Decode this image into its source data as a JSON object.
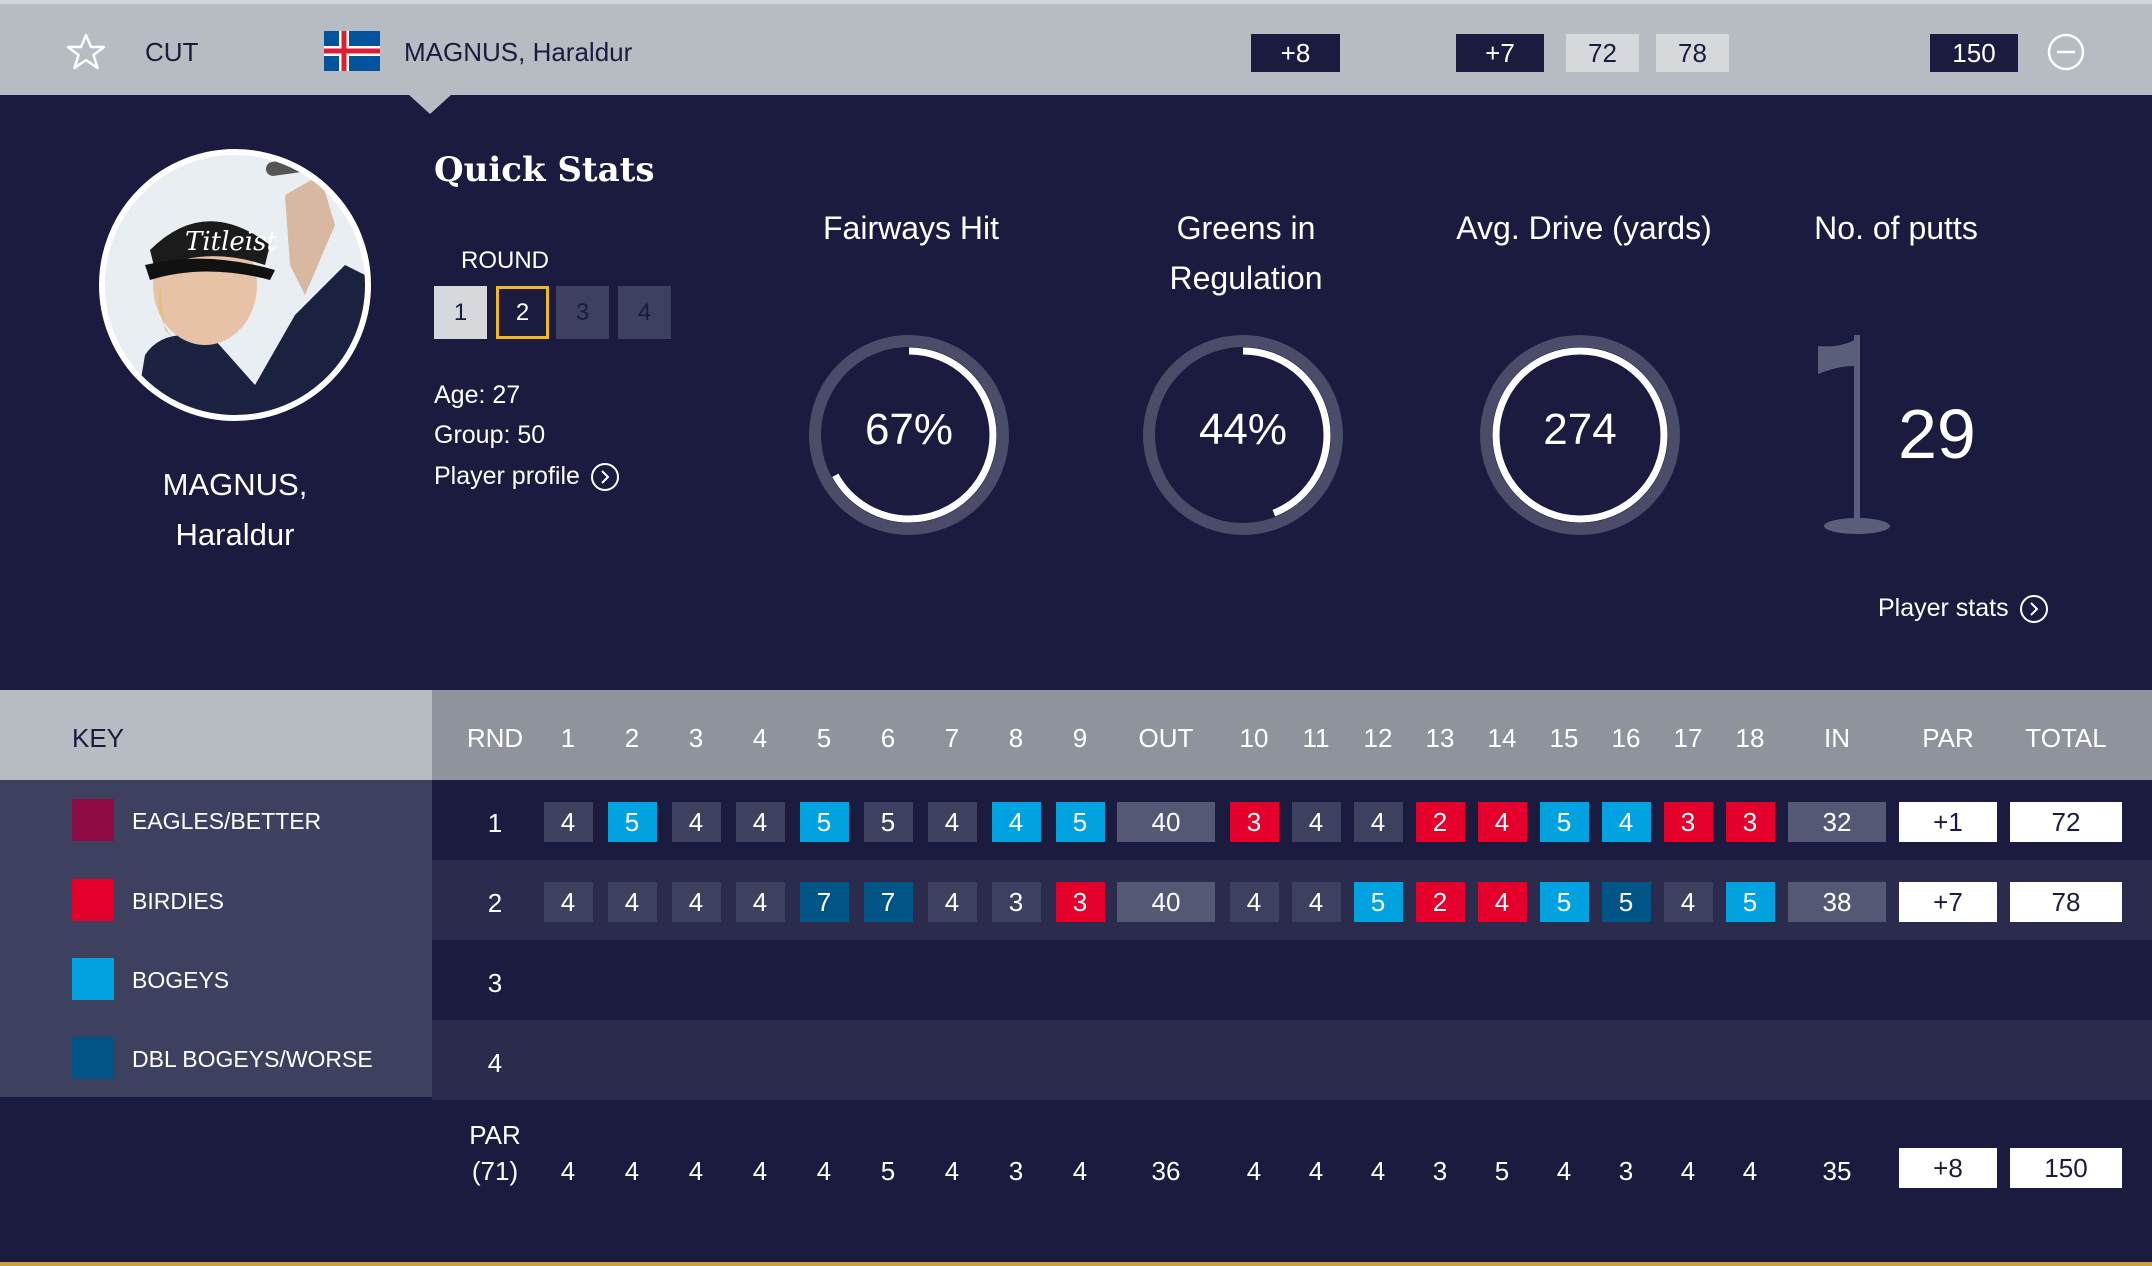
{
  "header": {
    "position": "CUT",
    "player_name": "MAGNUS, Haraldur",
    "to_par": "+8",
    "today": "+7",
    "r1": "72",
    "r2": "78",
    "total": "150"
  },
  "player": {
    "name_line1": "MAGNUS,",
    "name_line2": "Haraldur",
    "age": "Age: 27",
    "group": "Group: 50",
    "profile_link": "Player profile"
  },
  "quick_stats": {
    "title": "Quick Stats",
    "round_label": "ROUND",
    "rounds": [
      "1",
      "2",
      "3",
      "4"
    ],
    "selected_round": "2",
    "fairways_title": "Fairways Hit",
    "fairways_value": "67%",
    "fairways_fraction": 0.67,
    "gir_title_line1": "Greens in",
    "gir_title_line2": "Regulation",
    "gir_value": "44%",
    "gir_fraction": 0.44,
    "drive_title": "Avg. Drive (yards)",
    "drive_value": "274",
    "drive_fraction": 1.0,
    "putts_title": "No. of putts",
    "putts_value": "29",
    "stats_link": "Player stats"
  },
  "key": {
    "title": "KEY",
    "items": [
      {
        "label": "EAGLES/BETTER",
        "color": "#8e0a43"
      },
      {
        "label": "BIRDIES",
        "color": "#e4002b"
      },
      {
        "label": "BOGEYS",
        "color": "#00a3e0"
      },
      {
        "label": "DBL BOGEYS/WORSE",
        "color": "#005587"
      }
    ]
  },
  "colors": {
    "par": "#3e4060",
    "birdie": "#e4002b",
    "bogey": "#00a3e0",
    "dbl": "#005587",
    "subtotal": "#555874",
    "navy": "#1a1b3f",
    "row_alt": "#2a2b4d"
  },
  "scorecard": {
    "headers": [
      "RND",
      "1",
      "2",
      "3",
      "4",
      "5",
      "6",
      "7",
      "8",
      "9",
      "OUT",
      "10",
      "11",
      "12",
      "13",
      "14",
      "15",
      "16",
      "17",
      "18",
      "IN",
      "PAR",
      "TOTAL"
    ],
    "rounds": [
      {
        "round": "1",
        "holes": [
          "4",
          "5",
          "4",
          "4",
          "5",
          "5",
          "4",
          "4",
          "5"
        ],
        "types": [
          "par",
          "bogey",
          "par",
          "par",
          "bogey",
          "par",
          "par",
          "bogey",
          "bogey"
        ],
        "out": "40",
        "back": [
          "3",
          "4",
          "4",
          "2",
          "4",
          "5",
          "4",
          "3",
          "3"
        ],
        "back_types": [
          "birdie",
          "par",
          "par",
          "birdie",
          "birdie",
          "bogey",
          "bogey",
          "birdie",
          "birdie"
        ],
        "in": "32",
        "par": "+1",
        "total": "72"
      },
      {
        "round": "2",
        "holes": [
          "4",
          "4",
          "4",
          "4",
          "7",
          "7",
          "4",
          "3",
          "3"
        ],
        "types": [
          "par",
          "par",
          "par",
          "par",
          "dbl",
          "dbl",
          "par",
          "par",
          "birdie"
        ],
        "out": "40",
        "back": [
          "4",
          "4",
          "5",
          "2",
          "4",
          "5",
          "5",
          "4",
          "5"
        ],
        "back_types": [
          "par",
          "par",
          "bogey",
          "birdie",
          "birdie",
          "bogey",
          "dbl",
          "par",
          "bogey"
        ],
        "in": "38",
        "par": "+7",
        "total": "78"
      },
      {
        "round": "3"
      },
      {
        "round": "4"
      }
    ],
    "par_row": {
      "label_line1": "PAR",
      "label_line2": "(71)",
      "front": [
        "4",
        "4",
        "4",
        "4",
        "4",
        "5",
        "4",
        "3",
        "4"
      ],
      "out": "36",
      "back": [
        "4",
        "4",
        "4",
        "3",
        "5",
        "4",
        "3",
        "4",
        "4"
      ],
      "in": "35",
      "par": "+8",
      "total": "150"
    }
  }
}
